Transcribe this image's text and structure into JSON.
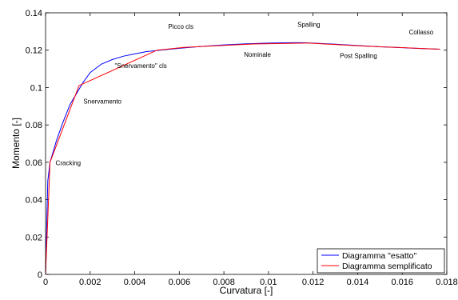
{
  "chart_data": {
    "type": "line",
    "title": "",
    "xlabel": "Curvatura [-]",
    "ylabel": "Momento [-]",
    "xlim": [
      0,
      0.018
    ],
    "ylim": [
      0,
      0.14
    ],
    "xticks": [
      {
        "value": 0,
        "label": "0"
      },
      {
        "value": 0.002,
        "label": "0.002"
      },
      {
        "value": 0.004,
        "label": "0.004"
      },
      {
        "value": 0.006,
        "label": "0.006"
      },
      {
        "value": 0.008,
        "label": "0.008"
      },
      {
        "value": 0.01,
        "label": "0.01"
      },
      {
        "value": 0.012,
        "label": "0.012"
      },
      {
        "value": 0.014,
        "label": "0.014"
      },
      {
        "value": 0.016,
        "label": "0.016"
      },
      {
        "value": 0.018,
        "label": "0.018"
      }
    ],
    "yticks": [
      {
        "value": 0,
        "label": "0"
      },
      {
        "value": 0.02,
        "label": "0.02"
      },
      {
        "value": 0.04,
        "label": "0.04"
      },
      {
        "value": 0.06,
        "label": "0.06"
      },
      {
        "value": 0.08,
        "label": "0.08"
      },
      {
        "value": 0.1,
        "label": "0.1"
      },
      {
        "value": 0.12,
        "label": "0.12"
      },
      {
        "value": 0.14,
        "label": "0.14"
      }
    ],
    "grid": false,
    "legend_position": "bottom-right",
    "series": [
      {
        "name": "Diagramma \"esatto\"",
        "color": "#0000ff",
        "x": [
          0,
          0.0001,
          0.0002,
          0.0003,
          0.0005,
          0.0008,
          0.0011,
          0.0014,
          0.0017,
          0.002,
          0.0025,
          0.003,
          0.0035,
          0.004,
          0.0045,
          0.005,
          0.006,
          0.007,
          0.008,
          0.009,
          0.01,
          0.011,
          0.0115,
          0.012,
          0.013,
          0.014,
          0.015,
          0.016,
          0.017,
          0.0177
        ],
        "y": [
          0,
          0.05,
          0.06,
          0.064,
          0.072,
          0.082,
          0.091,
          0.097,
          0.103,
          0.108,
          0.1125,
          0.115,
          0.1168,
          0.118,
          0.1192,
          0.1198,
          0.121,
          0.122,
          0.1228,
          0.1234,
          0.1238,
          0.124,
          0.124,
          0.1238,
          0.1232,
          0.1225,
          0.1218,
          0.1213,
          0.1208,
          0.1205
        ]
      },
      {
        "name": "Diagramma semplificato",
        "color": "#ff0000",
        "x": [
          0,
          0.0002,
          0.0015,
          0.005,
          0.0062,
          0.0093,
          0.0118,
          0.0143,
          0.0177
        ],
        "y": [
          0,
          0.06,
          0.101,
          0.12,
          0.1215,
          0.1233,
          0.1238,
          0.1222,
          0.1205
        ]
      }
    ],
    "annotations": [
      {
        "text": "Cracking",
        "x": 0.00045,
        "y": 0.0585
      },
      {
        "text": "Snervamento",
        "x": 0.0017,
        "y": 0.0915
      },
      {
        "text": "\"Snervamento\" cls",
        "x": 0.0031,
        "y": 0.1104
      },
      {
        "text": "Picco cls",
        "x": 0.0055,
        "y": 0.1315
      },
      {
        "text": "Nominale",
        "x": 0.0089,
        "y": 0.1165
      },
      {
        "text": "Spalling",
        "x": 0.0113,
        "y": 0.1325
      },
      {
        "text": "Post Spalling",
        "x": 0.0132,
        "y": 0.1159
      },
      {
        "text": "Collasso",
        "x": 0.0163,
        "y": 0.1285
      }
    ]
  }
}
